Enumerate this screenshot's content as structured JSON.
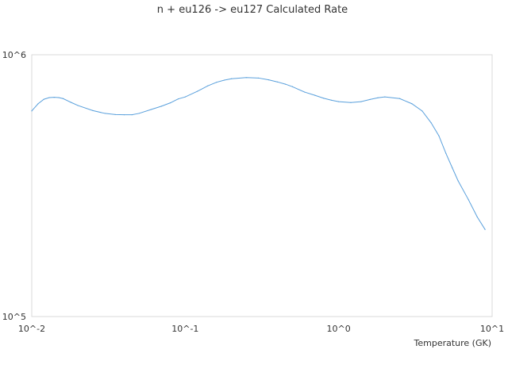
{
  "chart_data": {
    "type": "line",
    "title": "n + eu126 -> eu127 Calculated Rate",
    "xlabel": "Temperature (GK)",
    "ylabel": "",
    "x_scale": "log",
    "y_scale": "log",
    "xlim": [
      0.01,
      10
    ],
    "ylim": [
      100000,
      1000000
    ],
    "x_ticks": [
      {
        "value": 0.01,
        "label": "10^-2"
      },
      {
        "value": 0.1,
        "label": "10^-1"
      },
      {
        "value": 1,
        "label": "10^0"
      },
      {
        "value": 10,
        "label": "10^1"
      }
    ],
    "y_ticks": [
      {
        "value": 100000,
        "label": "10^5"
      },
      {
        "value": 1000000,
        "label": "10^6"
      }
    ],
    "grid": false,
    "legend": "none",
    "line_color": "#5aa0dc",
    "series": [
      {
        "x": [
          0.01,
          0.011,
          0.012,
          0.013,
          0.014,
          0.015,
          0.016,
          0.018,
          0.02,
          0.025,
          0.03,
          0.035,
          0.04,
          0.045,
          0.05,
          0.06,
          0.07,
          0.08,
          0.09,
          0.1,
          0.12,
          0.14,
          0.16,
          0.18,
          0.2,
          0.25,
          0.3,
          0.35,
          0.4,
          0.45,
          0.5,
          0.6,
          0.7,
          0.8,
          0.9,
          1.0,
          1.2,
          1.4,
          1.6,
          1.8,
          2.0,
          2.5,
          3.0,
          3.5,
          4.0,
          4.5,
          5.0,
          5.5,
          6.0,
          7.0,
          8.0,
          9.0
        ],
        "y": [
          610000,
          650000,
          676000,
          686000,
          688000,
          686000,
          680000,
          658000,
          640000,
          612000,
          597000,
          591000,
          590000,
          590000,
          597000,
          618000,
          636000,
          655000,
          678000,
          690000,
          725000,
          760000,
          785000,
          800000,
          810000,
          818000,
          815000,
          802000,
          787000,
          772000,
          755000,
          720000,
          700000,
          682000,
          670000,
          662000,
          657000,
          662000,
          675000,
          685000,
          690000,
          680000,
          650000,
          610000,
          550000,
          490000,
          420000,
          370000,
          330000,
          280000,
          240000,
          215000
        ]
      }
    ]
  }
}
